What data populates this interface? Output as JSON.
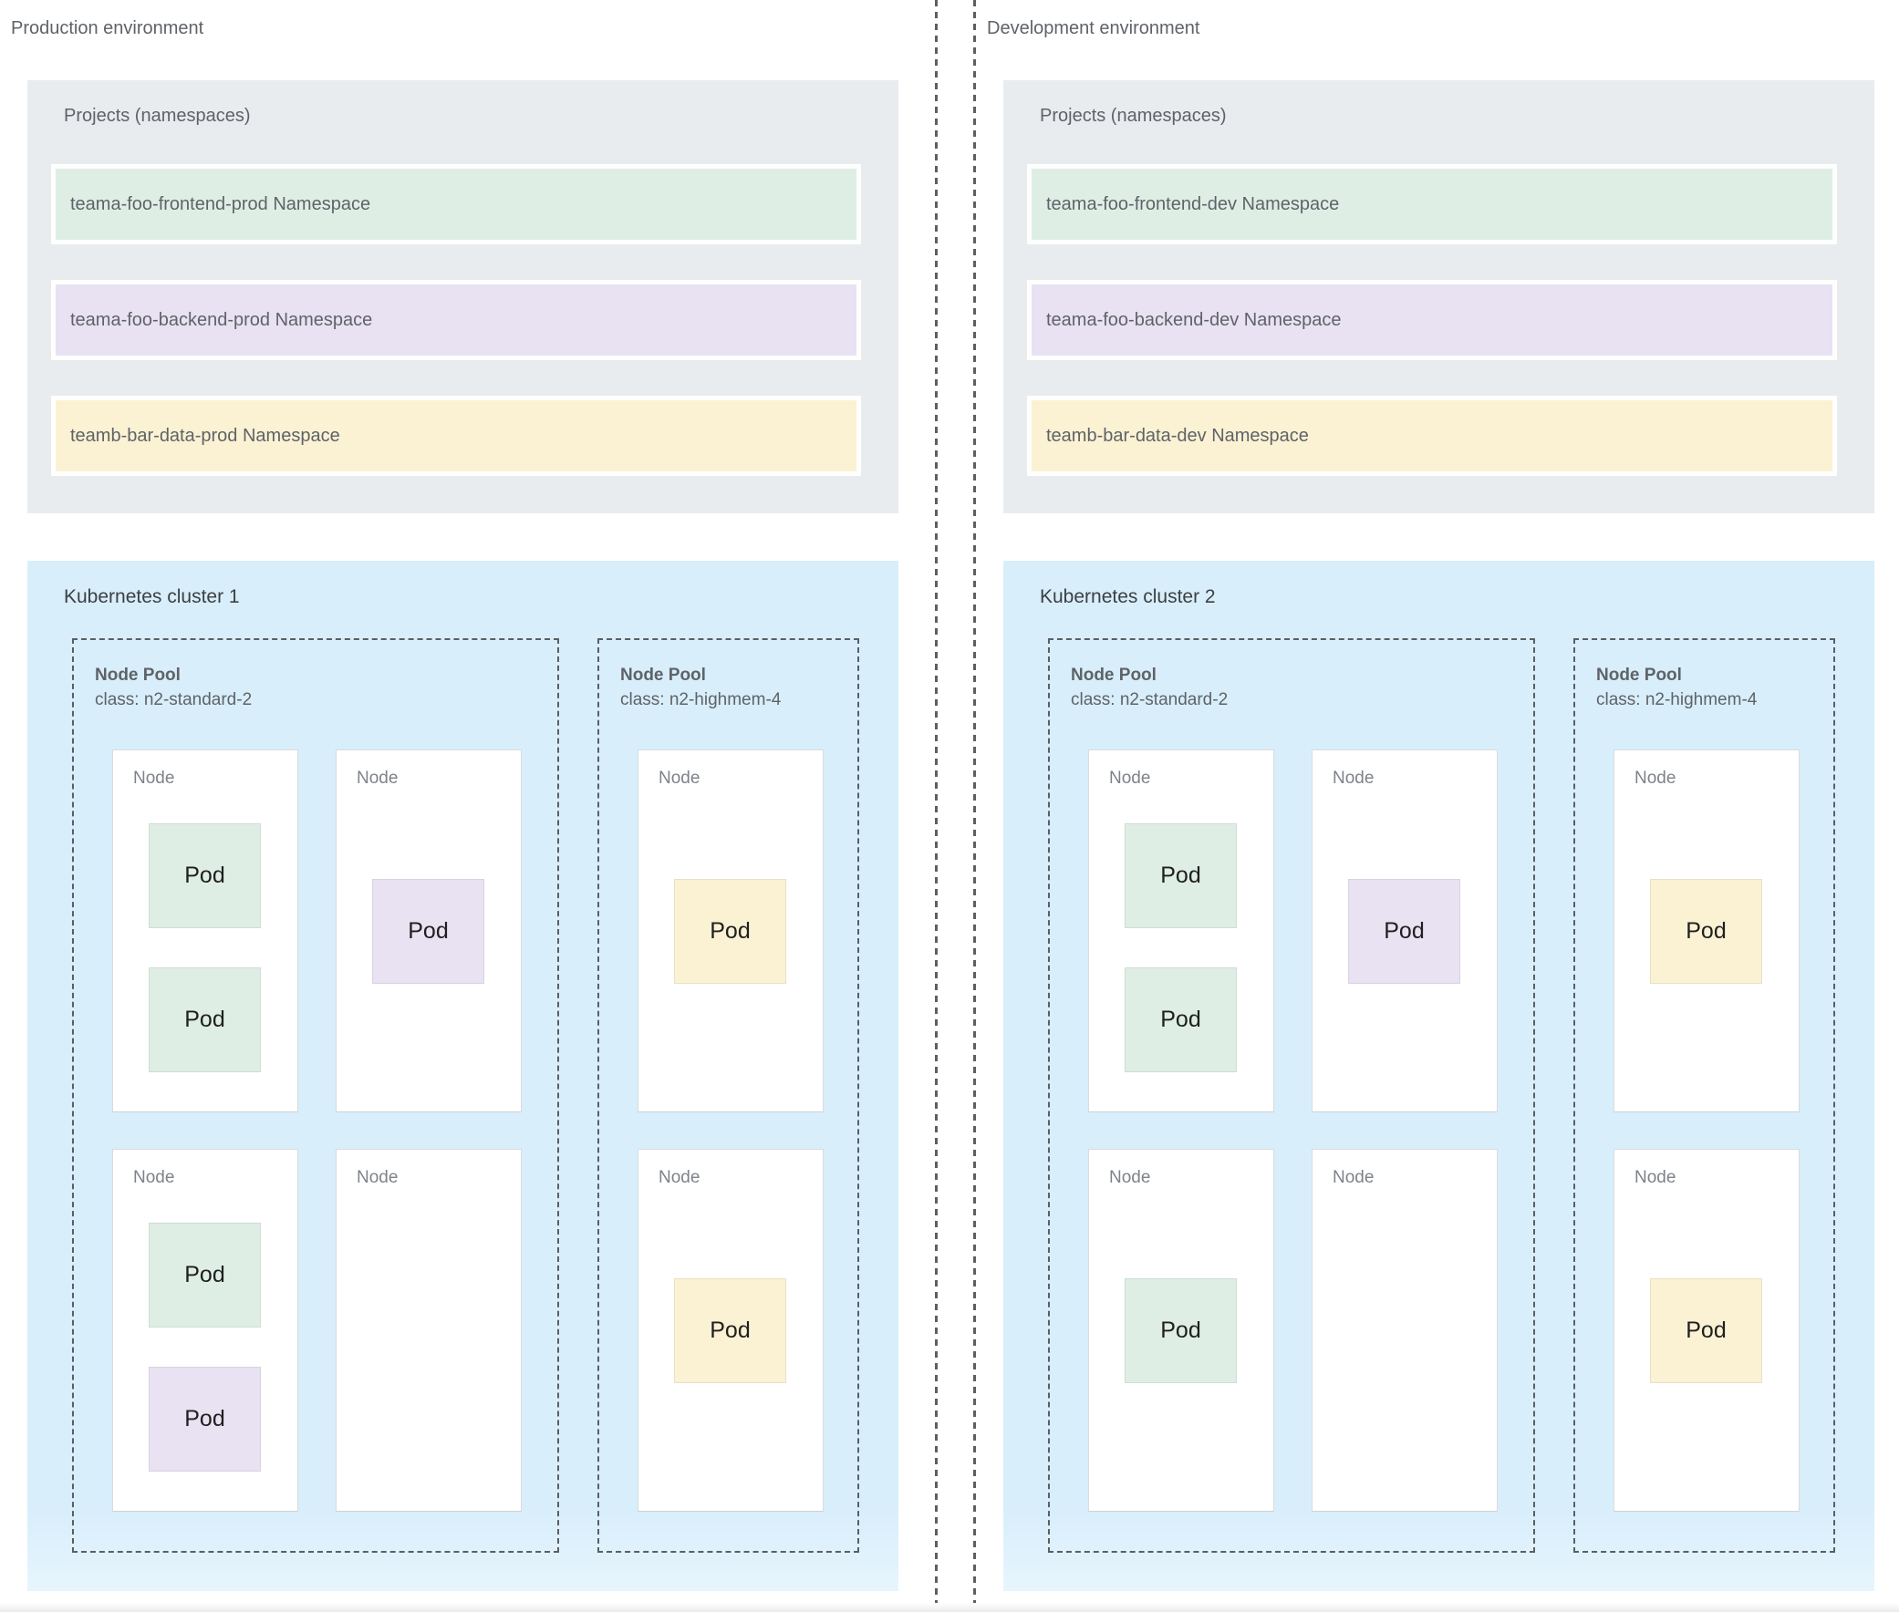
{
  "palette": {
    "projects_panel_gray": "#e8ecef",
    "cluster_panel_blue": "#d8eefb",
    "namespace_green": "#deeee5",
    "namespace_purple": "#e9e2f3",
    "namespace_yellow": "#fbf2d4",
    "node_white": "#ffffff",
    "dashed_border_gray": "#5a5e63",
    "text_gray": "#5f6368",
    "text_dark": "#1f1f1f"
  },
  "shared": {
    "projects_label": "Projects (namespaces)",
    "node_label": "Node",
    "pod_label": "Pod"
  },
  "production": {
    "title": "Production environment",
    "namespaces": [
      {
        "label": "teama-foo-frontend-prod Namespace",
        "color": "green"
      },
      {
        "label": "teama-foo-backend-prod Namespace",
        "color": "purple"
      },
      {
        "label": "teamb-bar-data-prod Namespace",
        "color": "yellow"
      }
    ],
    "cluster": {
      "title": "Kubernetes cluster 1",
      "pools": [
        {
          "title": "Node Pool",
          "class_label": "class: n2-standard-2",
          "nodes": [
            {
              "pods": [
                "green",
                "green"
              ]
            },
            {
              "pods": [
                "purple"
              ]
            },
            {
              "pods": [
                "green",
                "purple"
              ]
            },
            {
              "pods": []
            }
          ]
        },
        {
          "title": "Node Pool",
          "class_label": "class: n2-highmem-4",
          "nodes": [
            {
              "pods": [
                "yellow"
              ]
            },
            {
              "pods": [
                "yellow"
              ]
            }
          ]
        }
      ]
    }
  },
  "development": {
    "title": "Development environment",
    "namespaces": [
      {
        "label": "teama-foo-frontend-dev Namespace",
        "color": "green"
      },
      {
        "label": "teama-foo-backend-dev Namespace",
        "color": "purple"
      },
      {
        "label": "teamb-bar-data-dev Namespace",
        "color": "yellow"
      }
    ],
    "cluster": {
      "title": "Kubernetes cluster 2",
      "pools": [
        {
          "title": "Node Pool",
          "class_label": "class: n2-standard-2",
          "nodes": [
            {
              "pods": [
                "green",
                "green"
              ]
            },
            {
              "pods": [
                "purple"
              ]
            },
            {
              "pods": [
                "green"
              ]
            },
            {
              "pods": []
            }
          ]
        },
        {
          "title": "Node Pool",
          "class_label": "class: n2-highmem-4",
          "nodes": [
            {
              "pods": [
                "yellow"
              ]
            },
            {
              "pods": [
                "yellow"
              ]
            }
          ]
        }
      ]
    }
  }
}
